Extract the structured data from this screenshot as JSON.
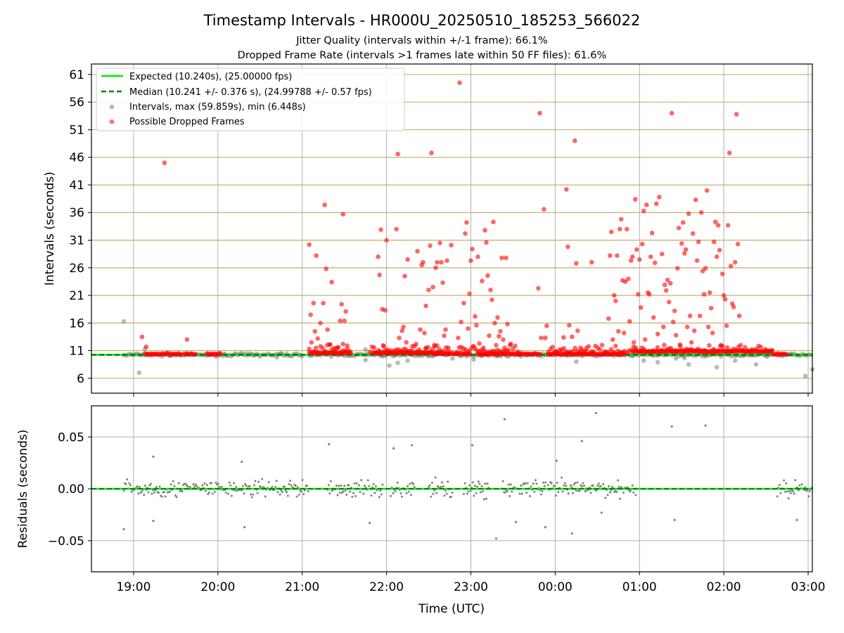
{
  "figure": {
    "title": "Timestamp Intervals - HR000U_20250510_185253_566022",
    "subtitle_1": "Jitter Quality (intervals within +/-1 frame): 66.1%",
    "subtitle_2": "Dropped Frame Rate (intervals >1 frames late within 50 FF files): 61.6%"
  },
  "colors": {
    "expected_line": "#00ee00",
    "median_line": "#008000",
    "intervals_points": "#808080",
    "dropped_points": "#ff0000",
    "hgrid": "#c8ad70",
    "vgrid": "#b0b0b0"
  },
  "chart_data": [
    {
      "type": "scatter",
      "name": "intervals",
      "xlabel": "",
      "ylabel": "Intervals (seconds)",
      "x_ticks": [
        "19:00",
        "20:00",
        "21:00",
        "22:00",
        "23:00",
        "00:00",
        "01:00",
        "02:00",
        "03:00"
      ],
      "x_range": [
        "18:30",
        "03:03"
      ],
      "y_ticks": [
        6,
        11,
        16,
        21,
        26,
        31,
        36,
        41,
        46,
        51,
        56,
        61
      ],
      "ylim": [
        3.3,
        62.9
      ],
      "grid": true,
      "legend_position": "top-left",
      "legend": {
        "expected": "Expected (10.240s), (25.00000 fps)",
        "median": "Median (10.241 +/- 0.376 s), (24.99788 +/- 0.57 fps)",
        "intervals": "Intervals, max (59.859s), min (6.448s)",
        "dropped": "Possible Dropped Frames"
      },
      "expected_value": 10.24,
      "median_value": 10.241,
      "intervals_sparse": [
        [
          "18:53",
          16.3
        ],
        [
          "18:53",
          10.2
        ],
        [
          "19:04",
          7.0
        ],
        [
          "19:08",
          11.3
        ],
        [
          "19:27",
          10.2
        ],
        [
          "20:05",
          10.3
        ],
        [
          "20:25",
          10.2
        ],
        [
          "20:42",
          9.8
        ],
        [
          "20:45",
          10.5
        ],
        [
          "21:45",
          11.2
        ],
        [
          "21:45",
          9.3
        ],
        [
          "21:57",
          10.0
        ],
        [
          "22:02",
          8.3
        ],
        [
          "22:08",
          8.8
        ],
        [
          "22:15",
          9.2
        ],
        [
          "22:33",
          10.0
        ],
        [
          "22:47",
          9.6
        ],
        [
          "23:02",
          9.4
        ],
        [
          "23:18",
          10.0
        ],
        [
          "00:15",
          9.0
        ],
        [
          "00:55",
          10.0
        ],
        [
          "01:03",
          9.2
        ],
        [
          "01:13",
          8.9
        ],
        [
          "01:26",
          9.6
        ],
        [
          "01:32",
          9.7
        ],
        [
          "01:35",
          8.5
        ],
        [
          "01:47",
          10.0
        ],
        [
          "01:55",
          8.0
        ],
        [
          "02:08",
          9.2
        ],
        [
          "02:23",
          8.5
        ],
        [
          "02:31",
          10.0
        ],
        [
          "02:48",
          10.3
        ],
        [
          "02:58",
          6.4
        ],
        [
          "03:03",
          7.6
        ]
      ],
      "intervals_band": [
        [
          "18:55",
          "21:00"
        ],
        [
          "21:05",
          "22:45"
        ],
        [
          "22:50",
          "00:50"
        ],
        [
          "00:52",
          "02:35"
        ],
        [
          "02:38",
          "03:03"
        ]
      ],
      "dropped_low_band": [
        [
          "21:05",
          "21:35"
        ],
        [
          "21:48",
          "22:45"
        ],
        [
          "22:50",
          "23:35"
        ],
        [
          "23:55",
          "00:58"
        ],
        [
          "01:00",
          "02:35"
        ]
      ],
      "dropped_low_runs": [
        [
          "19:08",
          "19:22",
          10.3
        ],
        [
          "19:23",
          "19:34",
          10.3
        ],
        [
          "19:36",
          "19:45",
          10.3
        ],
        [
          "19:52",
          "20:02",
          10.3
        ],
        [
          "21:05",
          "21:35",
          10.5
        ],
        [
          "21:50",
          "22:40",
          10.5
        ],
        [
          "22:35",
          "23:00",
          10.4
        ],
        [
          "23:05",
          "23:35",
          10.3
        ],
        [
          "23:35",
          "23:50",
          10.3
        ],
        [
          "23:55",
          "00:35",
          10.3
        ],
        [
          "00:35",
          "00:50",
          10.3
        ],
        [
          "00:55",
          "01:25",
          10.8
        ],
        [
          "01:25",
          "02:35",
          10.8
        ],
        [
          "02:35",
          "02:45",
          10.3
        ]
      ],
      "dropped_points": [
        [
          "19:06",
          13.5
        ],
        [
          "19:09",
          11.7
        ],
        [
          "19:22",
          45.0
        ],
        [
          "19:38",
          13.0
        ],
        [
          "21:05",
          30.2
        ],
        [
          "21:06",
          17.5
        ],
        [
          "21:08",
          19.6
        ],
        [
          "21:09",
          14.5
        ],
        [
          "21:10",
          28.2
        ],
        [
          "21:11",
          13.2
        ],
        [
          "21:13",
          16.0
        ],
        [
          "21:15",
          19.6
        ],
        [
          "21:16",
          37.4
        ],
        [
          "21:17",
          25.8
        ],
        [
          "21:18",
          14.8
        ],
        [
          "21:20",
          12.1
        ],
        [
          "21:21",
          23.4
        ],
        [
          "21:23",
          10.8
        ],
        [
          "21:25",
          11.5
        ],
        [
          "21:27",
          16.4
        ],
        [
          "21:28",
          19.4
        ],
        [
          "21:29",
          12.2
        ],
        [
          "21:29",
          35.7
        ],
        [
          "21:30",
          16.4
        ],
        [
          "21:31",
          18.1
        ],
        [
          "21:32",
          11.9
        ],
        [
          "21:54",
          28.0
        ],
        [
          "21:55",
          24.7
        ],
        [
          "21:56",
          32.9
        ],
        [
          "21:57",
          18.5
        ],
        [
          "21:58",
          11.8
        ],
        [
          "21:59",
          18.3
        ],
        [
          "22:00",
          31.0
        ],
        [
          "22:03",
          11.0
        ],
        [
          "22:07",
          33.0
        ],
        [
          "22:08",
          46.6
        ],
        [
          "22:09",
          13.3
        ],
        [
          "22:11",
          14.6
        ],
        [
          "22:12",
          15.3
        ],
        [
          "22:13",
          24.5
        ],
        [
          "22:14",
          12.5
        ],
        [
          "22:15",
          27.5
        ],
        [
          "22:18",
          11.0
        ],
        [
          "22:21",
          12.2
        ],
        [
          "22:22",
          29.0
        ],
        [
          "22:24",
          14.8
        ],
        [
          "22:25",
          26.5
        ],
        [
          "22:26",
          27.0
        ],
        [
          "22:27",
          14.2
        ],
        [
          "22:28",
          19.1
        ],
        [
          "22:28",
          11.5
        ],
        [
          "22:30",
          22.0
        ],
        [
          "22:31",
          30.0
        ],
        [
          "22:32",
          46.8
        ],
        [
          "22:33",
          22.5
        ],
        [
          "22:34",
          12.0
        ],
        [
          "22:35",
          26.0
        ],
        [
          "22:36",
          27.0
        ],
        [
          "22:38",
          30.5
        ],
        [
          "22:39",
          27.0
        ],
        [
          "22:40",
          23.3
        ],
        [
          "22:41",
          13.7
        ],
        [
          "22:42",
          14.8
        ],
        [
          "22:43",
          27.3
        ],
        [
          "22:44",
          11.5
        ],
        [
          "22:46",
          30.1
        ],
        [
          "22:51",
          13.3
        ],
        [
          "22:52",
          59.5
        ],
        [
          "22:53",
          16.2
        ],
        [
          "22:55",
          19.6
        ],
        [
          "22:56",
          32.2
        ],
        [
          "22:57",
          34.2
        ],
        [
          "22:58",
          15.0
        ],
        [
          "22:59",
          21.3
        ],
        [
          "23:00",
          27.3
        ],
        [
          "23:01",
          29.4
        ],
        [
          "23:02",
          11.8
        ],
        [
          "23:03",
          17.2
        ],
        [
          "23:04",
          15.6
        ],
        [
          "23:05",
          28.0
        ],
        [
          "23:06",
          12.3
        ],
        [
          "23:08",
          23.6
        ],
        [
          "23:09",
          11.5
        ],
        [
          "23:10",
          32.8
        ],
        [
          "23:11",
          30.6
        ],
        [
          "23:12",
          24.6
        ],
        [
          "23:13",
          13.7
        ],
        [
          "23:14",
          22.0
        ],
        [
          "23:15",
          20.2
        ],
        [
          "23:16",
          34.3
        ],
        [
          "23:17",
          16.0
        ],
        [
          "23:18",
          12.0
        ],
        [
          "23:19",
          17.0
        ],
        [
          "23:20",
          13.6
        ],
        [
          "23:21",
          14.5
        ],
        [
          "23:22",
          27.8
        ],
        [
          "23:23",
          13.0
        ],
        [
          "23:24",
          11.5
        ],
        [
          "23:25",
          27.8
        ],
        [
          "23:26",
          15.8
        ],
        [
          "23:28",
          12.0
        ],
        [
          "23:48",
          22.3
        ],
        [
          "23:49",
          54.0
        ],
        [
          "23:50",
          13.3
        ],
        [
          "23:52",
          36.6
        ],
        [
          "23:53",
          13.3
        ],
        [
          "23:54",
          15.5
        ],
        [
          "00:01",
          10.8
        ],
        [
          "00:06",
          13.4
        ],
        [
          "00:08",
          40.2
        ],
        [
          "00:09",
          29.8
        ],
        [
          "00:10",
          15.6
        ],
        [
          "00:12",
          13.5
        ],
        [
          "00:14",
          49.0
        ],
        [
          "00:15",
          26.8
        ],
        [
          "00:16",
          14.6
        ],
        [
          "00:18",
          11.5
        ],
        [
          "00:22",
          10.9
        ],
        [
          "00:26",
          27.0
        ],
        [
          "00:38",
          16.8
        ],
        [
          "00:39",
          28.2
        ],
        [
          "00:40",
          32.5
        ],
        [
          "00:41",
          13.0
        ],
        [
          "00:42",
          21.0
        ],
        [
          "00:43",
          20.0
        ],
        [
          "00:44",
          28.2
        ],
        [
          "00:45",
          14.5
        ],
        [
          "00:46",
          33.0
        ],
        [
          "00:47",
          34.8
        ],
        [
          "00:48",
          23.7
        ],
        [
          "00:49",
          14.2
        ],
        [
          "00:50",
          23.5
        ],
        [
          "00:51",
          33.0
        ],
        [
          "00:52",
          24.0
        ],
        [
          "00:53",
          16.3
        ],
        [
          "00:54",
          27.3
        ],
        [
          "00:55",
          28.0
        ],
        [
          "00:56",
          12.5
        ],
        [
          "00:57",
          38.4
        ],
        [
          "00:58",
          29.3
        ],
        [
          "00:59",
          21.2
        ],
        [
          "01:00",
          27.5
        ],
        [
          "01:01",
          18.8
        ],
        [
          "01:02",
          30.3
        ],
        [
          "01:03",
          36.3
        ],
        [
          "01:04",
          13.0
        ],
        [
          "01:05",
          37.4
        ],
        [
          "01:06",
          21.5
        ],
        [
          "01:07",
          21.2
        ],
        [
          "01:08",
          28.0
        ],
        [
          "01:09",
          32.3
        ],
        [
          "01:10",
          17.0
        ],
        [
          "01:11",
          26.9
        ],
        [
          "01:12",
          37.6
        ],
        [
          "01:13",
          14.0
        ],
        [
          "01:14",
          38.8
        ],
        [
          "01:16",
          28.5
        ],
        [
          "01:17",
          15.3
        ],
        [
          "01:18",
          22.9
        ],
        [
          "01:19",
          21.9
        ],
        [
          "01:20",
          23.8
        ],
        [
          "01:21",
          19.8
        ],
        [
          "01:22",
          23.2
        ],
        [
          "01:23",
          54.0
        ],
        [
          "01:24",
          16.2
        ],
        [
          "01:25",
          18.2
        ],
        [
          "01:26",
          13.8
        ],
        [
          "01:27",
          25.9
        ],
        [
          "01:28",
          33.2
        ],
        [
          "01:29",
          11.8
        ],
        [
          "01:30",
          30.4
        ],
        [
          "01:31",
          34.2
        ],
        [
          "01:32",
          28.6
        ],
        [
          "01:33",
          29.3
        ],
        [
          "01:34",
          15.3
        ],
        [
          "01:35",
          35.8
        ],
        [
          "01:36",
          17.3
        ],
        [
          "01:37",
          12.5
        ],
        [
          "01:38",
          32.2
        ],
        [
          "01:39",
          14.6
        ],
        [
          "01:40",
          38.3
        ],
        [
          "01:41",
          27.3
        ],
        [
          "01:42",
          30.7
        ],
        [
          "01:43",
          17.3
        ],
        [
          "01:44",
          36.0
        ],
        [
          "01:45",
          25.4
        ],
        [
          "01:46",
          21.2
        ],
        [
          "01:47",
          25.9
        ],
        [
          "01:48",
          40.0
        ],
        [
          "01:49",
          15.3
        ],
        [
          "01:50",
          21.5
        ],
        [
          "01:51",
          18.7
        ],
        [
          "01:52",
          14.2
        ],
        [
          "01:53",
          30.7
        ],
        [
          "01:54",
          34.3
        ],
        [
          "01:55",
          28.0
        ],
        [
          "01:56",
          33.7
        ],
        [
          "01:57",
          29.2
        ],
        [
          "01:58",
          12.0
        ],
        [
          "01:59",
          24.9
        ],
        [
          "02:00",
          21.0
        ],
        [
          "02:01",
          20.3
        ],
        [
          "02:02",
          15.5
        ],
        [
          "02:03",
          33.7
        ],
        [
          "02:04",
          46.8
        ],
        [
          "02:05",
          26.3
        ],
        [
          "02:06",
          19.5
        ],
        [
          "02:07",
          18.9
        ],
        [
          "02:08",
          27.0
        ],
        [
          "02:09",
          53.8
        ],
        [
          "02:10",
          30.3
        ],
        [
          "02:11",
          17.3
        ],
        [
          "02:12",
          12.0
        ]
      ]
    },
    {
      "type": "scatter",
      "name": "residuals",
      "xlabel": "Time (UTC)",
      "ylabel": "Residuals (seconds)",
      "x_ticks": [
        "19:00",
        "20:00",
        "21:00",
        "22:00",
        "23:00",
        "00:00",
        "01:00",
        "02:00",
        "03:00"
      ],
      "y_ticks": [
        "0.05",
        "0.00",
        "−0.05"
      ],
      "y_tick_values": [
        0.05,
        0.0,
        -0.05
      ],
      "ylim": [
        -0.08,
        0.08
      ],
      "grid": true,
      "segments": [
        [
          "18:53",
          "21:05"
        ],
        [
          "21:18",
          "21:58"
        ],
        [
          "22:03",
          "22:20"
        ],
        [
          "22:30",
          "22:47"
        ],
        [
          "22:55",
          "23:13"
        ],
        [
          "23:22",
          "23:54"
        ],
        [
          "23:55",
          "00:58"
        ],
        [
          "02:38",
          "03:03"
        ]
      ],
      "residual_outliers": [
        [
          "18:53",
          -0.039
        ],
        [
          "19:14",
          0.031
        ],
        [
          "19:14",
          -0.031
        ],
        [
          "20:17",
          0.026
        ],
        [
          "20:19",
          -0.037
        ],
        [
          "21:19",
          0.043
        ],
        [
          "21:48",
          -0.033
        ],
        [
          "22:05",
          0.039
        ],
        [
          "22:18",
          0.042
        ],
        [
          "23:01",
          0.042
        ],
        [
          "23:18",
          -0.048
        ],
        [
          "23:24",
          0.067
        ],
        [
          "23:32",
          -0.032
        ],
        [
          "23:53",
          -0.037
        ],
        [
          "00:01",
          0.027
        ],
        [
          "00:12",
          -0.043
        ],
        [
          "00:19",
          0.046
        ],
        [
          "00:29",
          0.073
        ],
        [
          "00:33",
          -0.023
        ],
        [
          "01:23",
          0.06
        ],
        [
          "01:25",
          -0.03
        ],
        [
          "01:47",
          0.061
        ],
        [
          "02:52",
          -0.03
        ]
      ]
    }
  ]
}
